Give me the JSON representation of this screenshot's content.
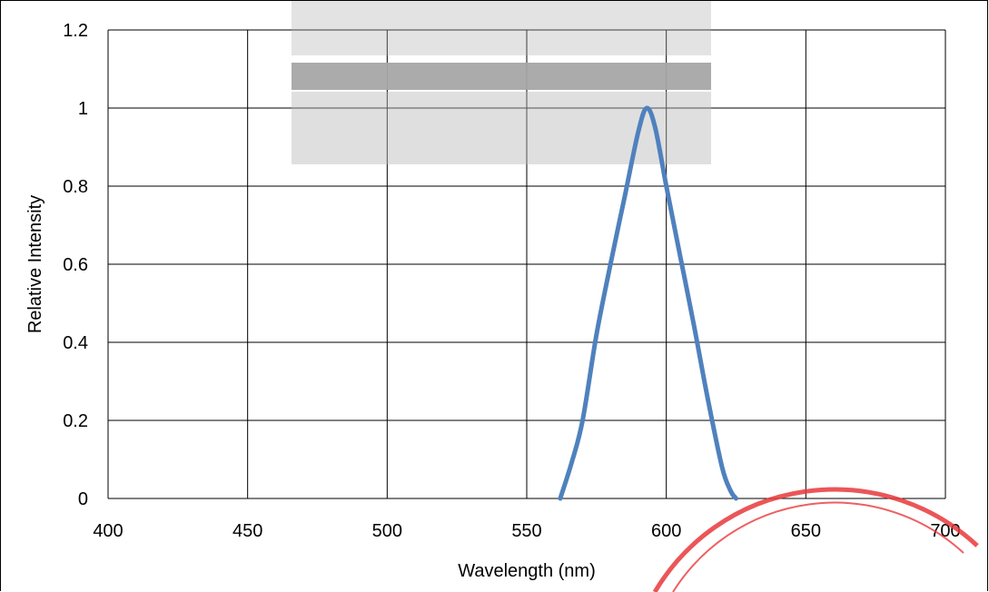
{
  "chart_data": {
    "type": "line",
    "title": "",
    "xlabel": "Wavelength (nm)",
    "ylabel": "Relative Intensity",
    "xlim": [
      400,
      700
    ],
    "ylim": [
      0,
      1.2
    ],
    "x_ticks": [
      "400",
      "450",
      "500",
      "550",
      "600",
      "650",
      "700"
    ],
    "y_ticks": [
      "0",
      "0.2",
      "0.4",
      "0.6",
      "0.8",
      "1",
      "1.2"
    ],
    "grid": true,
    "legend": "none",
    "series": [
      {
        "color": "#4f81bd",
        "x": [
          562,
          566,
          570,
          575,
          580,
          585,
          590,
          593,
          596,
          600,
          605,
          610,
          615,
          620,
          623,
          625
        ],
        "y": [
          0,
          0.09,
          0.2,
          0.42,
          0.6,
          0.77,
          0.94,
          1.0,
          0.95,
          0.8,
          0.62,
          0.44,
          0.25,
          0.08,
          0.02,
          0
        ]
      }
    ]
  },
  "colors": {
    "series_line": "#4f81bd",
    "grid": "#000000",
    "stamp": "#e8383b",
    "watermark": "#9e9e9e"
  }
}
